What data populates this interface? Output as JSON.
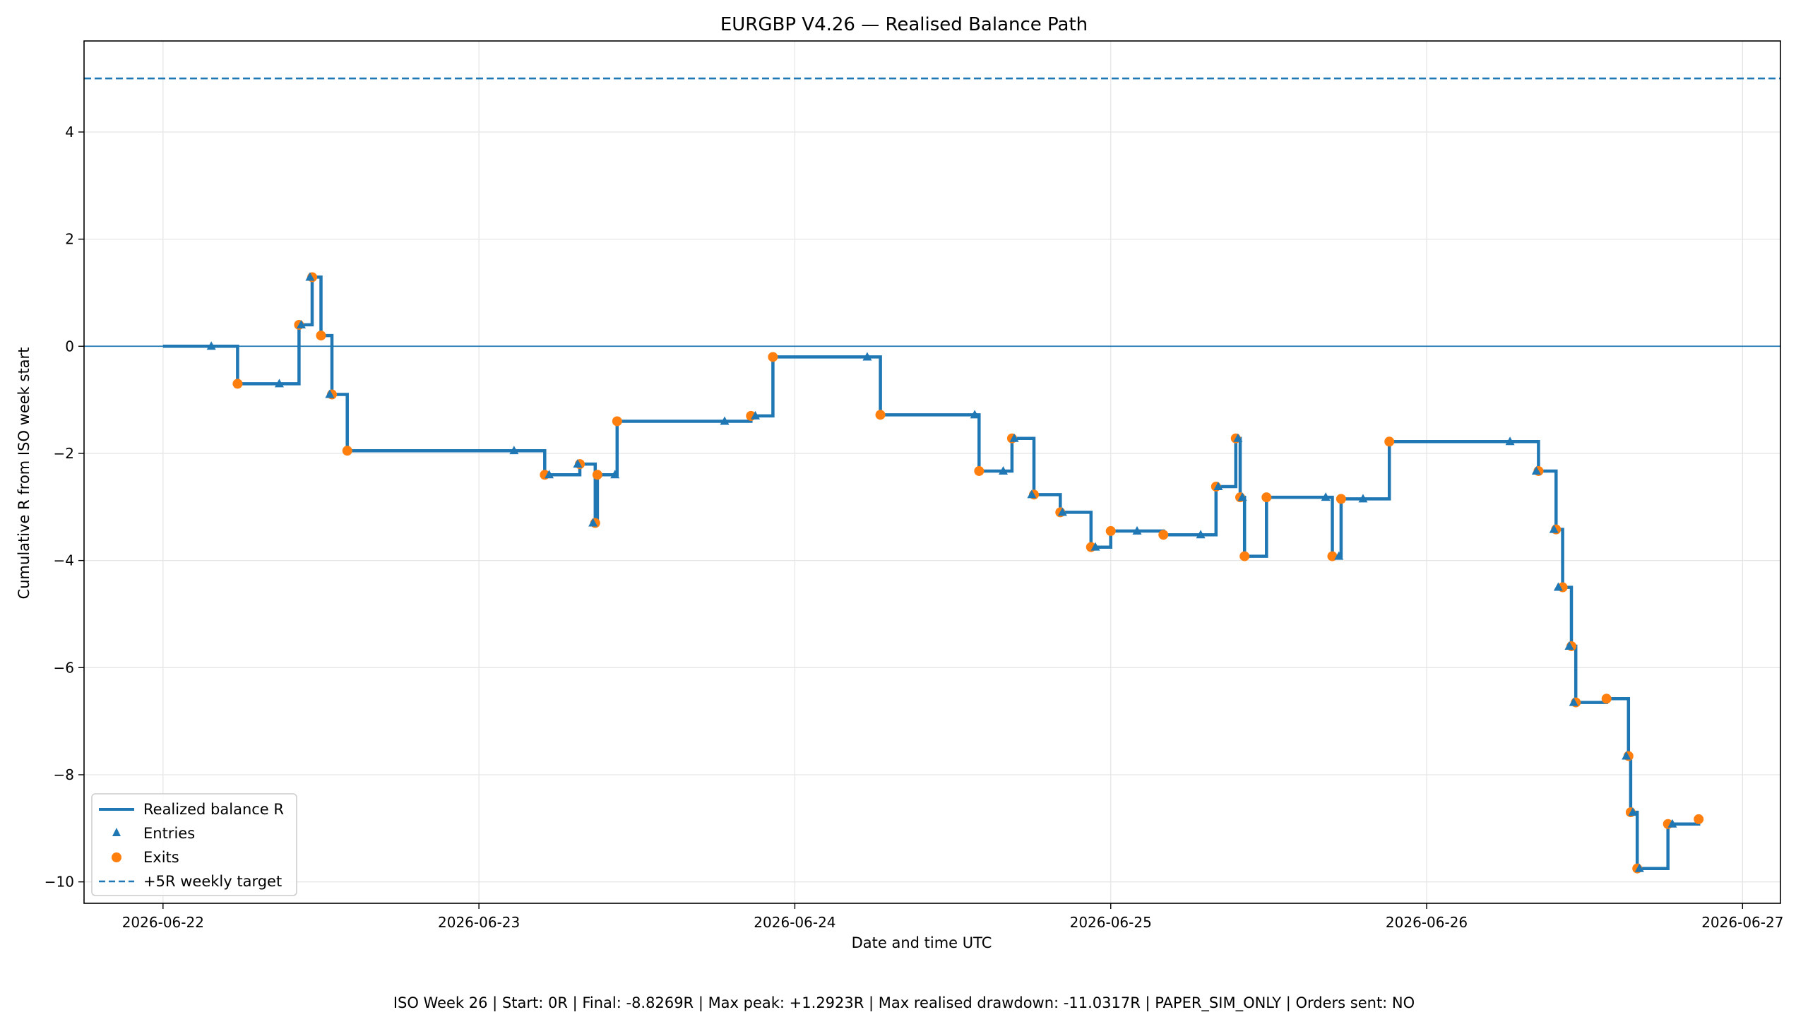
{
  "chart_data": {
    "type": "line",
    "title": "EURGBP V4.26 — Realised Balance Path",
    "xlabel": "Date and time UTC",
    "ylabel": "Cumulative R from ISO week start",
    "ylim": [
      -10.4,
      5.7
    ],
    "xlim_days": [
      -0.25,
      5.12
    ],
    "x_ticks": [
      "2026-06-22",
      "2026-06-23",
      "2026-06-24",
      "2026-06-25",
      "2026-06-26",
      "2026-06-27"
    ],
    "y_ticks": [
      -10,
      -8,
      -6,
      -4,
      -2,
      0,
      2,
      4
    ],
    "grid": true,
    "legend_position": "lower-left",
    "legend": [
      "Realized balance R",
      "Entries",
      "Exits",
      "+5R weekly target"
    ],
    "target_line": {
      "value": 5,
      "label": "+5R weekly target"
    },
    "zero_line": 0,
    "series": [
      {
        "name": "Realized balance R",
        "step_points": [
          [
            "2026-06-22 00:00",
            0.0
          ],
          [
            "2026-06-22 05:40",
            -0.7
          ],
          [
            "2026-06-22 10:20",
            0.4
          ],
          [
            "2026-06-22 11:20",
            1.29
          ],
          [
            "2026-06-22 12:00",
            0.2
          ],
          [
            "2026-06-22 12:50",
            -0.9
          ],
          [
            "2026-06-22 14:00",
            -1.95
          ],
          [
            "2026-06-23 05:00",
            -2.4
          ],
          [
            "2026-06-23 07:40",
            -2.2
          ],
          [
            "2026-06-23 08:50",
            -3.3
          ],
          [
            "2026-06-23 09:00",
            -2.4
          ],
          [
            "2026-06-23 10:30",
            -1.4
          ],
          [
            "2026-06-23 20:40",
            -1.3
          ],
          [
            "2026-06-23 22:20",
            -0.2
          ],
          [
            "2026-06-24 06:30",
            -1.28
          ],
          [
            "2026-06-24 14:00",
            -2.33
          ],
          [
            "2026-06-24 16:30",
            -1.72
          ],
          [
            "2026-06-24 18:10",
            -2.77
          ],
          [
            "2026-06-24 20:10",
            -3.1
          ],
          [
            "2026-06-24 22:30",
            -3.75
          ],
          [
            "2026-06-25 00:00",
            -3.45
          ],
          [
            "2026-06-25 04:00",
            -3.52
          ],
          [
            "2026-06-25 08:00",
            -2.62
          ],
          [
            "2026-06-25 09:30",
            -1.72
          ],
          [
            "2026-06-25 09:50",
            -2.82
          ],
          [
            "2026-06-25 10:10",
            -3.92
          ],
          [
            "2026-06-25 11:50",
            -2.82
          ],
          [
            "2026-06-25 16:50",
            -3.92
          ],
          [
            "2026-06-25 17:30",
            -2.85
          ],
          [
            "2026-06-25 21:10",
            -1.78
          ],
          [
            "2026-06-26 08:30",
            -2.33
          ],
          [
            "2026-06-26 09:50",
            -3.42
          ],
          [
            "2026-06-26 10:20",
            -4.5
          ],
          [
            "2026-06-26 11:00",
            -5.6
          ],
          [
            "2026-06-26 11:20",
            -6.65
          ],
          [
            "2026-06-26 13:40",
            -6.58
          ],
          [
            "2026-06-26 15:20",
            -7.65
          ],
          [
            "2026-06-26 15:30",
            -8.7
          ],
          [
            "2026-06-26 16:00",
            -9.75
          ],
          [
            "2026-06-26 18:20",
            -8.92
          ],
          [
            "2026-06-26 20:40",
            -8.83
          ]
        ]
      },
      {
        "name": "Entries",
        "points": [
          [
            "2026-06-22 03:40",
            0.0
          ],
          [
            "2026-06-22 08:50",
            -0.7
          ],
          [
            "2026-06-22 10:30",
            0.4
          ],
          [
            "2026-06-22 11:10",
            1.29
          ],
          [
            "2026-06-22 12:40",
            -0.9
          ],
          [
            "2026-06-23 02:40",
            -1.95
          ],
          [
            "2026-06-23 05:20",
            -2.4
          ],
          [
            "2026-06-23 07:30",
            -2.2
          ],
          [
            "2026-06-23 08:40",
            -3.3
          ],
          [
            "2026-06-23 10:20",
            -2.4
          ],
          [
            "2026-06-23 18:40",
            -1.4
          ],
          [
            "2026-06-23 21:00",
            -1.3
          ],
          [
            "2026-06-24 05:30",
            -0.2
          ],
          [
            "2026-06-24 13:40",
            -1.28
          ],
          [
            "2026-06-24 15:50",
            -2.33
          ],
          [
            "2026-06-24 16:40",
            -1.72
          ],
          [
            "2026-06-24 18:00",
            -2.77
          ],
          [
            "2026-06-24 20:20",
            -3.1
          ],
          [
            "2026-06-24 22:50",
            -3.75
          ],
          [
            "2026-06-25 02:00",
            -3.45
          ],
          [
            "2026-06-25 06:50",
            -3.52
          ],
          [
            "2026-06-25 08:10",
            -2.62
          ],
          [
            "2026-06-25 09:40",
            -1.72
          ],
          [
            "2026-06-25 10:00",
            -2.82
          ],
          [
            "2026-06-25 16:20",
            -2.82
          ],
          [
            "2026-06-25 17:20",
            -3.92
          ],
          [
            "2026-06-25 19:10",
            -2.85
          ],
          [
            "2026-06-26 06:20",
            -1.78
          ],
          [
            "2026-06-26 08:20",
            -2.33
          ],
          [
            "2026-06-26 09:40",
            -3.42
          ],
          [
            "2026-06-26 10:00",
            -4.5
          ],
          [
            "2026-06-26 10:50",
            -5.6
          ],
          [
            "2026-06-26 11:10",
            -6.65
          ],
          [
            "2026-06-26 15:10",
            -7.65
          ],
          [
            "2026-06-26 15:40",
            -8.7
          ],
          [
            "2026-06-26 16:10",
            -9.75
          ],
          [
            "2026-06-26 18:40",
            -8.92
          ]
        ]
      },
      {
        "name": "Exits",
        "points": [
          [
            "2026-06-22 05:40",
            -0.7
          ],
          [
            "2026-06-22 10:20",
            0.4
          ],
          [
            "2026-06-22 11:20",
            1.29
          ],
          [
            "2026-06-22 12:00",
            0.2
          ],
          [
            "2026-06-22 12:50",
            -0.9
          ],
          [
            "2026-06-22 14:00",
            -1.95
          ],
          [
            "2026-06-23 05:00",
            -2.4
          ],
          [
            "2026-06-23 07:40",
            -2.2
          ],
          [
            "2026-06-23 08:50",
            -3.3
          ],
          [
            "2026-06-23 09:00",
            -2.4
          ],
          [
            "2026-06-23 10:30",
            -1.4
          ],
          [
            "2026-06-23 20:40",
            -1.3
          ],
          [
            "2026-06-23 22:20",
            -0.2
          ],
          [
            "2026-06-24 06:30",
            -1.28
          ],
          [
            "2026-06-24 14:00",
            -2.33
          ],
          [
            "2026-06-24 16:30",
            -1.72
          ],
          [
            "2026-06-24 18:10",
            -2.77
          ],
          [
            "2026-06-24 20:10",
            -3.1
          ],
          [
            "2026-06-24 22:30",
            -3.75
          ],
          [
            "2026-06-25 00:00",
            -3.45
          ],
          [
            "2026-06-25 04:00",
            -3.52
          ],
          [
            "2026-06-25 08:00",
            -2.62
          ],
          [
            "2026-06-25 09:30",
            -1.72
          ],
          [
            "2026-06-25 09:50",
            -2.82
          ],
          [
            "2026-06-25 10:10",
            -3.92
          ],
          [
            "2026-06-25 11:50",
            -2.82
          ],
          [
            "2026-06-25 16:50",
            -3.92
          ],
          [
            "2026-06-25 17:30",
            -2.85
          ],
          [
            "2026-06-25 21:10",
            -1.78
          ],
          [
            "2026-06-26 08:30",
            -2.33
          ],
          [
            "2026-06-26 09:50",
            -3.42
          ],
          [
            "2026-06-26 10:20",
            -4.5
          ],
          [
            "2026-06-26 11:00",
            -5.6
          ],
          [
            "2026-06-26 11:20",
            -6.65
          ],
          [
            "2026-06-26 13:40",
            -6.58
          ],
          [
            "2026-06-26 15:20",
            -7.65
          ],
          [
            "2026-06-26 15:30",
            -8.7
          ],
          [
            "2026-06-26 16:00",
            -9.75
          ],
          [
            "2026-06-26 18:20",
            -8.92
          ],
          [
            "2026-06-26 20:40",
            -8.83
          ]
        ]
      }
    ]
  },
  "colors": {
    "line": "#1f77b4",
    "entries": "#1f77b4",
    "exits": "#ff7f0e",
    "grid": "#e6e6e6"
  },
  "footer": "ISO Week 26 | Start: 0R | Final: -8.8269R | Max peak: +1.2923R | Max realised drawdown: -11.0317R | PAPER_SIM_ONLY | Orders sent: NO"
}
